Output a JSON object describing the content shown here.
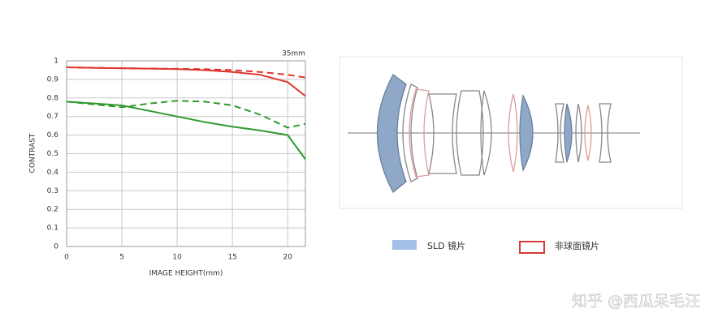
{
  "chart_data": {
    "type": "line",
    "annotation": "35mm",
    "xlabel": "IMAGE HEIGHT(mm)",
    "ylabel": "CONTRAST",
    "x": [
      0,
      2.5,
      5,
      7.5,
      10,
      12.5,
      15,
      17.5,
      20,
      21.6
    ],
    "series": [
      {
        "color": "#e0352e",
        "dash": false,
        "values": [
          0.965,
          0.962,
          0.96,
          0.958,
          0.955,
          0.95,
          0.94,
          0.925,
          0.885,
          0.81
        ]
      },
      {
        "color": "#e0352e",
        "dash": true,
        "values": [
          0.965,
          0.963,
          0.96,
          0.958,
          0.957,
          0.955,
          0.95,
          0.94,
          0.925,
          0.91
        ]
      },
      {
        "color": "#2f9a2f",
        "dash": false,
        "values": [
          0.78,
          0.77,
          0.76,
          0.73,
          0.7,
          0.67,
          0.645,
          0.625,
          0.6,
          0.47
        ]
      },
      {
        "color": "#2f9a2f",
        "dash": true,
        "values": [
          0.78,
          0.765,
          0.75,
          0.77,
          0.785,
          0.78,
          0.76,
          0.71,
          0.64,
          0.66
        ]
      }
    ],
    "xlim": [
      0,
      21.6
    ],
    "xticks": [
      0,
      5,
      10,
      15,
      20
    ],
    "ylim": [
      0,
      1
    ],
    "yticks": [
      0,
      0.1,
      0.2,
      0.3,
      0.4,
      0.5,
      0.6,
      0.7,
      0.8,
      0.9,
      1
    ],
    "grid": true
  },
  "lens_legend": [
    {
      "label": "SLD 镜片",
      "color": "#a4bfe8"
    },
    {
      "label": "非球面镜片",
      "color": "#d83a3a"
    }
  ],
  "watermark": "知乎 @西瓜呆毛汪"
}
